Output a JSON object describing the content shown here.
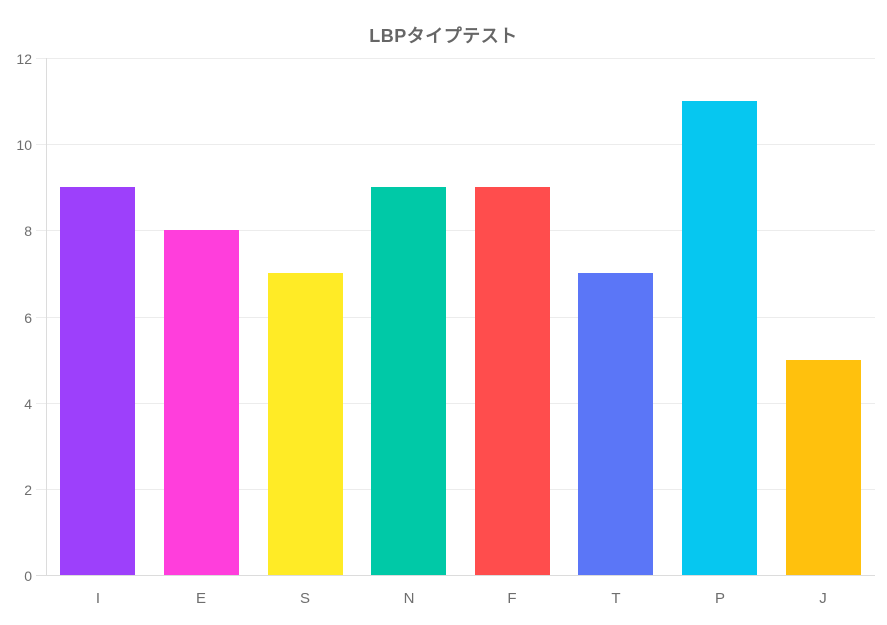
{
  "chart_data": {
    "type": "bar",
    "title": "LBPタイプテスト",
    "categories": [
      "I",
      "E",
      "S",
      "N",
      "F",
      "T",
      "P",
      "J"
    ],
    "values": [
      9,
      8,
      7,
      9,
      9,
      7,
      11,
      5
    ],
    "bar_colors": [
      "#9d40fb",
      "#ff3edc",
      "#ffeb26",
      "#00c9a7",
      "#ff4d4d",
      "#5b76f7",
      "#06c7f0",
      "#ffc10d"
    ],
    "xlabel": "",
    "ylabel": "",
    "ylim": [
      0,
      12
    ],
    "yticks": [
      0,
      2,
      4,
      6,
      8,
      10,
      12
    ],
    "grid": "horizontal-only",
    "legend": "none",
    "colors": {
      "title_text": "#666666",
      "tick_text": "#6e6e6e",
      "gridline": "#ececec",
      "axis_border": "#dcdcdc",
      "background": "#ffffff"
    }
  }
}
